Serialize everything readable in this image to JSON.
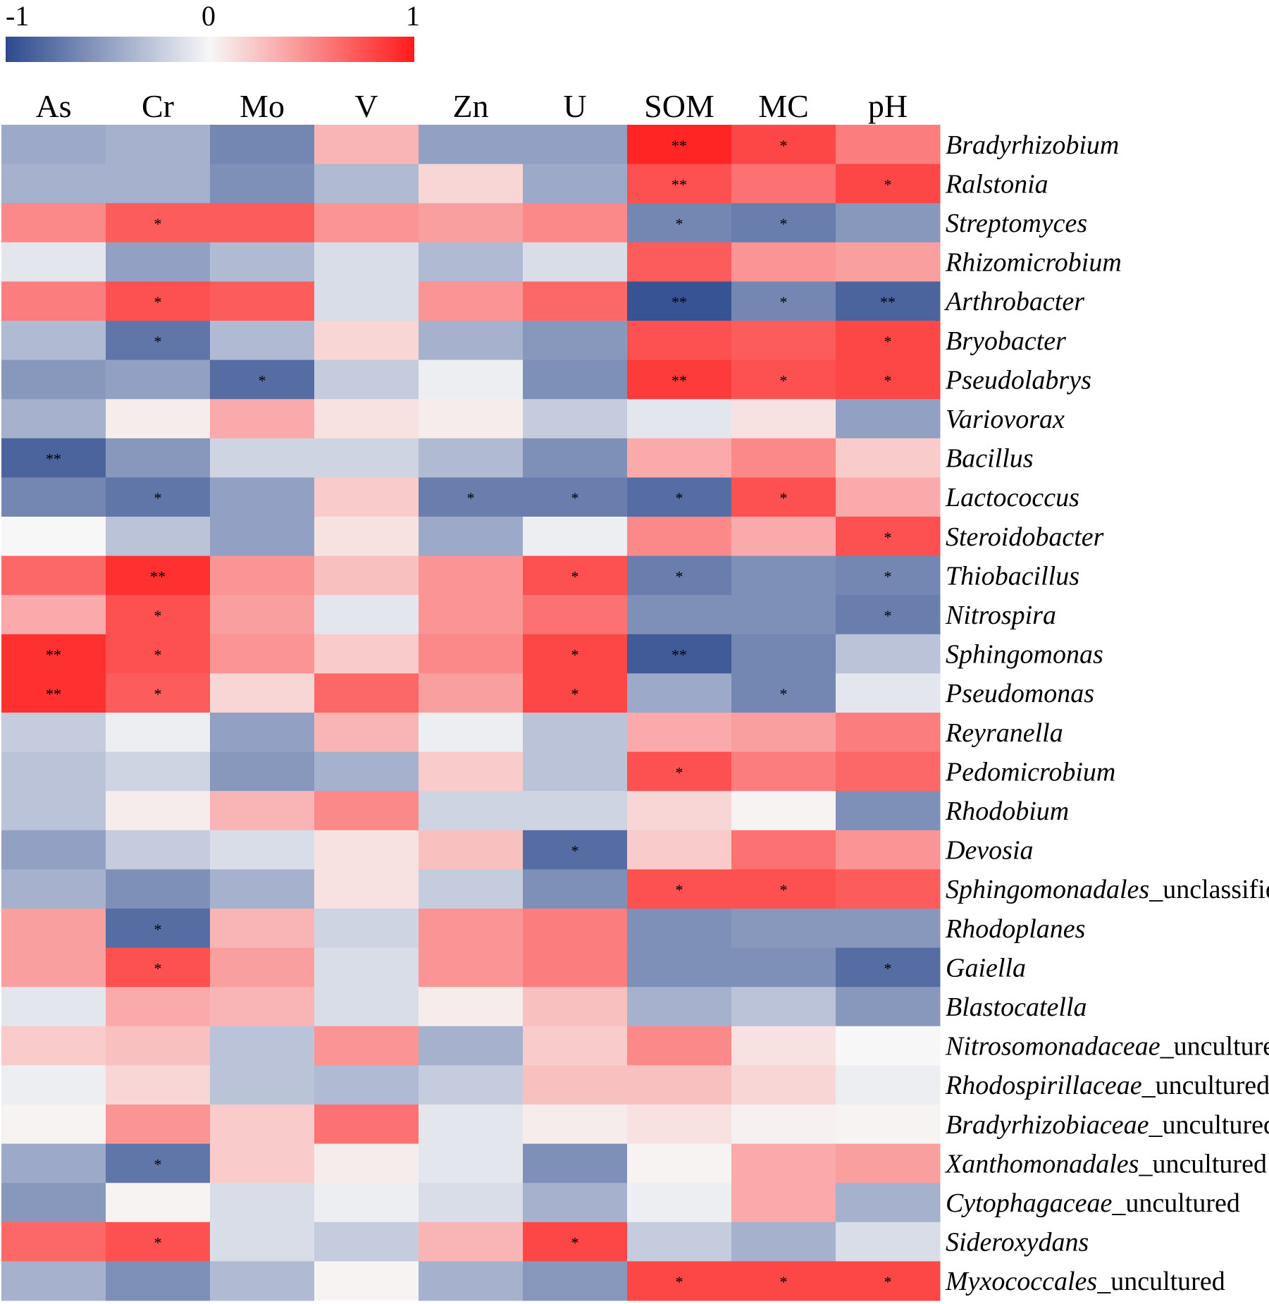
{
  "chart_data": {
    "type": "heatmap",
    "title": "",
    "legend": {
      "min_label": "-1",
      "mid_label": "0",
      "max_label": "1",
      "range": [
        -1,
        1
      ],
      "colors": {
        "low": "#2d4a8e",
        "mid": "#f7f7f7",
        "high": "#ff1a1a"
      }
    },
    "columns": [
      "As",
      "Cr",
      "Mo",
      "V",
      "Zn",
      "U",
      "SOM",
      "MC",
      "pH"
    ],
    "rows": [
      {
        "name": "Bradyrhizobium",
        "suffix": ""
      },
      {
        "name": "Ralstonia",
        "suffix": ""
      },
      {
        "name": "Streptomyces",
        "suffix": ""
      },
      {
        "name": "Rhizomicrobium",
        "suffix": ""
      },
      {
        "name": "Arthrobacter",
        "suffix": ""
      },
      {
        "name": "Bryobacter",
        "suffix": ""
      },
      {
        "name": "Pseudolabrys",
        "suffix": ""
      },
      {
        "name": "Variovorax",
        "suffix": ""
      },
      {
        "name": "Bacillus",
        "suffix": ""
      },
      {
        "name": "Lactococcus",
        "suffix": ""
      },
      {
        "name": "Steroidobacter",
        "suffix": ""
      },
      {
        "name": "Thiobacillus",
        "suffix": ""
      },
      {
        "name": "Nitrospira",
        "suffix": ""
      },
      {
        "name": "Sphingomonas",
        "suffix": ""
      },
      {
        "name": "Pseudomonas",
        "suffix": ""
      },
      {
        "name": "Reyranella",
        "suffix": ""
      },
      {
        "name": "Pedomicrobium",
        "suffix": ""
      },
      {
        "name": "Rhodobium",
        "suffix": ""
      },
      {
        "name": "Devosia",
        "suffix": ""
      },
      {
        "name": "Sphingomonadales",
        "suffix": "_unclassified"
      },
      {
        "name": "Rhodoplanes",
        "suffix": ""
      },
      {
        "name": "Gaiella",
        "suffix": ""
      },
      {
        "name": "Blastocatella",
        "suffix": ""
      },
      {
        "name": "Nitrosomonadaceae",
        "suffix": "_uncultured"
      },
      {
        "name": "Rhodospirillaceae",
        "suffix": "_uncultured"
      },
      {
        "name": "Bradyrhizobiaceae",
        "suffix": "_uncultured"
      },
      {
        "name": "Xanthomonadales",
        "suffix": "_uncultured"
      },
      {
        "name": "Cytophagaceae",
        "suffix": "_uncultured"
      },
      {
        "name": "Sideroxydans",
        "suffix": ""
      },
      {
        "name": "Myxococcales",
        "suffix": "_uncultured"
      }
    ],
    "values": [
      [
        -0.45,
        -0.4,
        -0.65,
        0.3,
        -0.5,
        -0.5,
        0.95,
        0.8,
        0.55
      ],
      [
        -0.4,
        -0.4,
        -0.6,
        -0.35,
        0.15,
        -0.45,
        0.75,
        0.6,
        0.8
      ],
      [
        0.5,
        0.7,
        0.7,
        0.45,
        0.4,
        0.5,
        -0.65,
        -0.7,
        -0.55
      ],
      [
        -0.1,
        -0.5,
        -0.35,
        -0.15,
        -0.35,
        -0.15,
        0.7,
        0.45,
        0.4
      ],
      [
        0.55,
        0.75,
        0.7,
        -0.15,
        0.45,
        0.65,
        -0.95,
        -0.65,
        -0.85
      ],
      [
        -0.35,
        -0.75,
        -0.35,
        0.15,
        -0.4,
        -0.55,
        0.75,
        0.7,
        0.8
      ],
      [
        -0.55,
        -0.5,
        -0.8,
        -0.25,
        -0.05,
        -0.6,
        0.85,
        0.75,
        0.8
      ],
      [
        -0.4,
        0.05,
        0.35,
        0.1,
        0.05,
        -0.25,
        -0.1,
        0.1,
        -0.5
      ],
      [
        -0.85,
        -0.55,
        -0.2,
        -0.2,
        -0.35,
        -0.6,
        0.35,
        0.5,
        0.2
      ],
      [
        -0.65,
        -0.75,
        -0.5,
        0.2,
        -0.7,
        -0.7,
        -0.8,
        0.75,
        0.35
      ],
      [
        0.0,
        -0.3,
        -0.5,
        0.1,
        -0.45,
        -0.05,
        0.5,
        0.35,
        0.75
      ],
      [
        0.65,
        0.9,
        0.45,
        0.25,
        0.45,
        0.75,
        -0.7,
        -0.6,
        -0.65
      ],
      [
        0.35,
        0.75,
        0.4,
        -0.1,
        0.45,
        0.6,
        -0.6,
        -0.6,
        -0.7
      ],
      [
        0.9,
        0.75,
        0.45,
        0.2,
        0.5,
        0.8,
        -0.9,
        -0.65,
        -0.3
      ],
      [
        0.9,
        0.7,
        0.15,
        0.65,
        0.4,
        0.8,
        -0.45,
        -0.65,
        -0.1
      ],
      [
        -0.25,
        -0.05,
        -0.5,
        0.3,
        -0.05,
        -0.3,
        0.35,
        0.4,
        0.55
      ],
      [
        -0.3,
        -0.2,
        -0.55,
        -0.4,
        0.2,
        -0.3,
        0.75,
        0.55,
        0.65
      ],
      [
        -0.3,
        0.05,
        0.3,
        0.5,
        -0.2,
        -0.2,
        0.15,
        0.02,
        -0.6
      ],
      [
        -0.5,
        -0.25,
        -0.15,
        0.1,
        0.25,
        -0.8,
        0.2,
        0.6,
        0.45
      ],
      [
        -0.4,
        -0.6,
        -0.4,
        0.1,
        -0.25,
        -0.6,
        0.75,
        0.75,
        0.7
      ],
      [
        0.4,
        -0.8,
        0.3,
        -0.2,
        0.45,
        0.55,
        -0.6,
        -0.55,
        -0.55
      ],
      [
        0.4,
        0.75,
        0.4,
        -0.15,
        0.45,
        0.55,
        -0.6,
        -0.6,
        -0.8
      ],
      [
        -0.1,
        0.35,
        0.3,
        -0.15,
        0.05,
        0.25,
        -0.4,
        -0.3,
        -0.55
      ],
      [
        0.2,
        0.25,
        -0.3,
        0.45,
        -0.4,
        0.2,
        0.5,
        0.1,
        0.0
      ],
      [
        -0.05,
        0.15,
        -0.3,
        -0.35,
        -0.25,
        0.25,
        0.25,
        0.15,
        -0.05
      ],
      [
        0.02,
        0.45,
        0.2,
        0.6,
        -0.1,
        0.05,
        0.1,
        0.03,
        0.02
      ],
      [
        -0.45,
        -0.75,
        0.2,
        0.05,
        -0.1,
        -0.6,
        0.02,
        0.35,
        0.4
      ],
      [
        -0.55,
        0.02,
        -0.15,
        -0.05,
        -0.15,
        -0.4,
        -0.05,
        0.35,
        -0.4
      ],
      [
        0.65,
        0.75,
        -0.15,
        -0.25,
        0.3,
        0.8,
        -0.25,
        -0.4,
        -0.15
      ],
      [
        -0.4,
        -0.6,
        -0.35,
        0.02,
        -0.4,
        -0.55,
        0.8,
        0.8,
        0.8
      ]
    ],
    "significance": [
      [
        "",
        "",
        "",
        "",
        "",
        "",
        "**",
        "*",
        ""
      ],
      [
        "",
        "",
        "",
        "",
        "",
        "",
        "**",
        "",
        "*"
      ],
      [
        "",
        "*",
        "",
        "",
        "",
        "",
        "*",
        "*",
        ""
      ],
      [
        "",
        "",
        "",
        "",
        "",
        "",
        "",
        "",
        ""
      ],
      [
        "",
        "*",
        "",
        "",
        "",
        "",
        "**",
        "*",
        "**"
      ],
      [
        "",
        "*",
        "",
        "",
        "",
        "",
        "",
        "",
        "*"
      ],
      [
        "",
        "",
        "*",
        "",
        "",
        "",
        "**",
        "*",
        "*"
      ],
      [
        "",
        "",
        "",
        "",
        "",
        "",
        "",
        "",
        ""
      ],
      [
        "**",
        "",
        "",
        "",
        "",
        "",
        "",
        "",
        ""
      ],
      [
        "",
        "*",
        "",
        "",
        "*",
        "*",
        "*",
        "*",
        ""
      ],
      [
        "",
        "",
        "",
        "",
        "",
        "",
        "",
        "",
        "*"
      ],
      [
        "",
        "**",
        "",
        "",
        "",
        "*",
        "*",
        "",
        "*"
      ],
      [
        "",
        "*",
        "",
        "",
        "",
        "",
        "",
        "",
        "*"
      ],
      [
        "**",
        "*",
        "",
        "",
        "",
        "*",
        "**",
        "",
        ""
      ],
      [
        "**",
        "*",
        "",
        "",
        "",
        "*",
        "",
        "*",
        ""
      ],
      [
        "",
        "",
        "",
        "",
        "",
        "",
        "",
        "",
        ""
      ],
      [
        "",
        "",
        "",
        "",
        "",
        "",
        "*",
        "",
        ""
      ],
      [
        "",
        "",
        "",
        "",
        "",
        "",
        "",
        "",
        ""
      ],
      [
        "",
        "",
        "",
        "",
        "",
        "*",
        "",
        "",
        ""
      ],
      [
        "",
        "",
        "",
        "",
        "",
        "",
        "*",
        "*",
        ""
      ],
      [
        "",
        "*",
        "",
        "",
        "",
        "",
        "",
        "",
        ""
      ],
      [
        "",
        "*",
        "",
        "",
        "",
        "",
        "",
        "",
        "*"
      ],
      [
        "",
        "",
        "",
        "",
        "",
        "",
        "",
        "",
        ""
      ],
      [
        "",
        "",
        "",
        "",
        "",
        "",
        "",
        "",
        ""
      ],
      [
        "",
        "",
        "",
        "",
        "",
        "",
        "",
        "",
        ""
      ],
      [
        "",
        "",
        "",
        "",
        "",
        "",
        "",
        "",
        ""
      ],
      [
        "",
        "*",
        "",
        "",
        "",
        "",
        "",
        "",
        ""
      ],
      [
        "",
        "",
        "",
        "",
        "",
        "",
        "",
        "",
        ""
      ],
      [
        "",
        "*",
        "",
        "",
        "",
        "*",
        "",
        "",
        ""
      ],
      [
        "",
        "",
        "",
        "",
        "",
        "",
        "*",
        "*",
        "*"
      ]
    ]
  }
}
